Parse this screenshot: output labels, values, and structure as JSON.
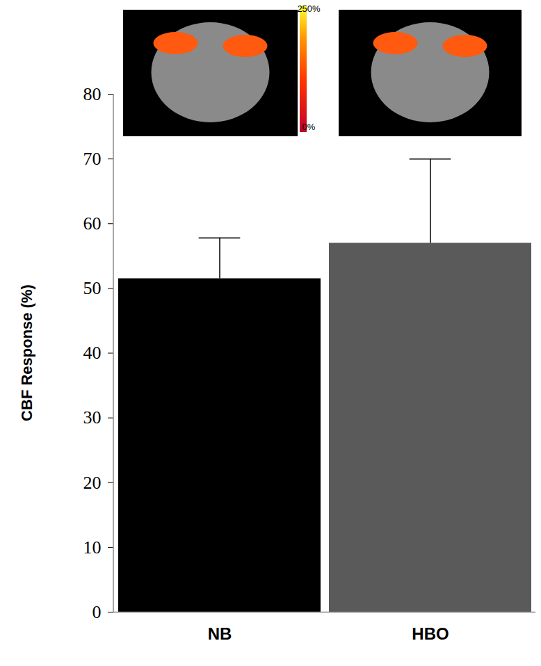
{
  "chart_data": {
    "type": "bar",
    "categories": [
      "NB",
      "HBO"
    ],
    "values": [
      51.5,
      57
    ],
    "error": [
      6.3,
      13
    ],
    "colors": [
      "#000000",
      "#5a5a5a"
    ],
    "ylabel": "CBF Response (%)",
    "ylim": [
      0,
      80
    ],
    "yticks": [
      0,
      10,
      20,
      30,
      40,
      50,
      60,
      70,
      80
    ],
    "color_bar": {
      "range": [
        0,
        250
      ],
      "ticks": [
        {
          "value": 0,
          "label": "0%"
        },
        {
          "value": 250,
          "label": "250%"
        }
      ]
    }
  }
}
